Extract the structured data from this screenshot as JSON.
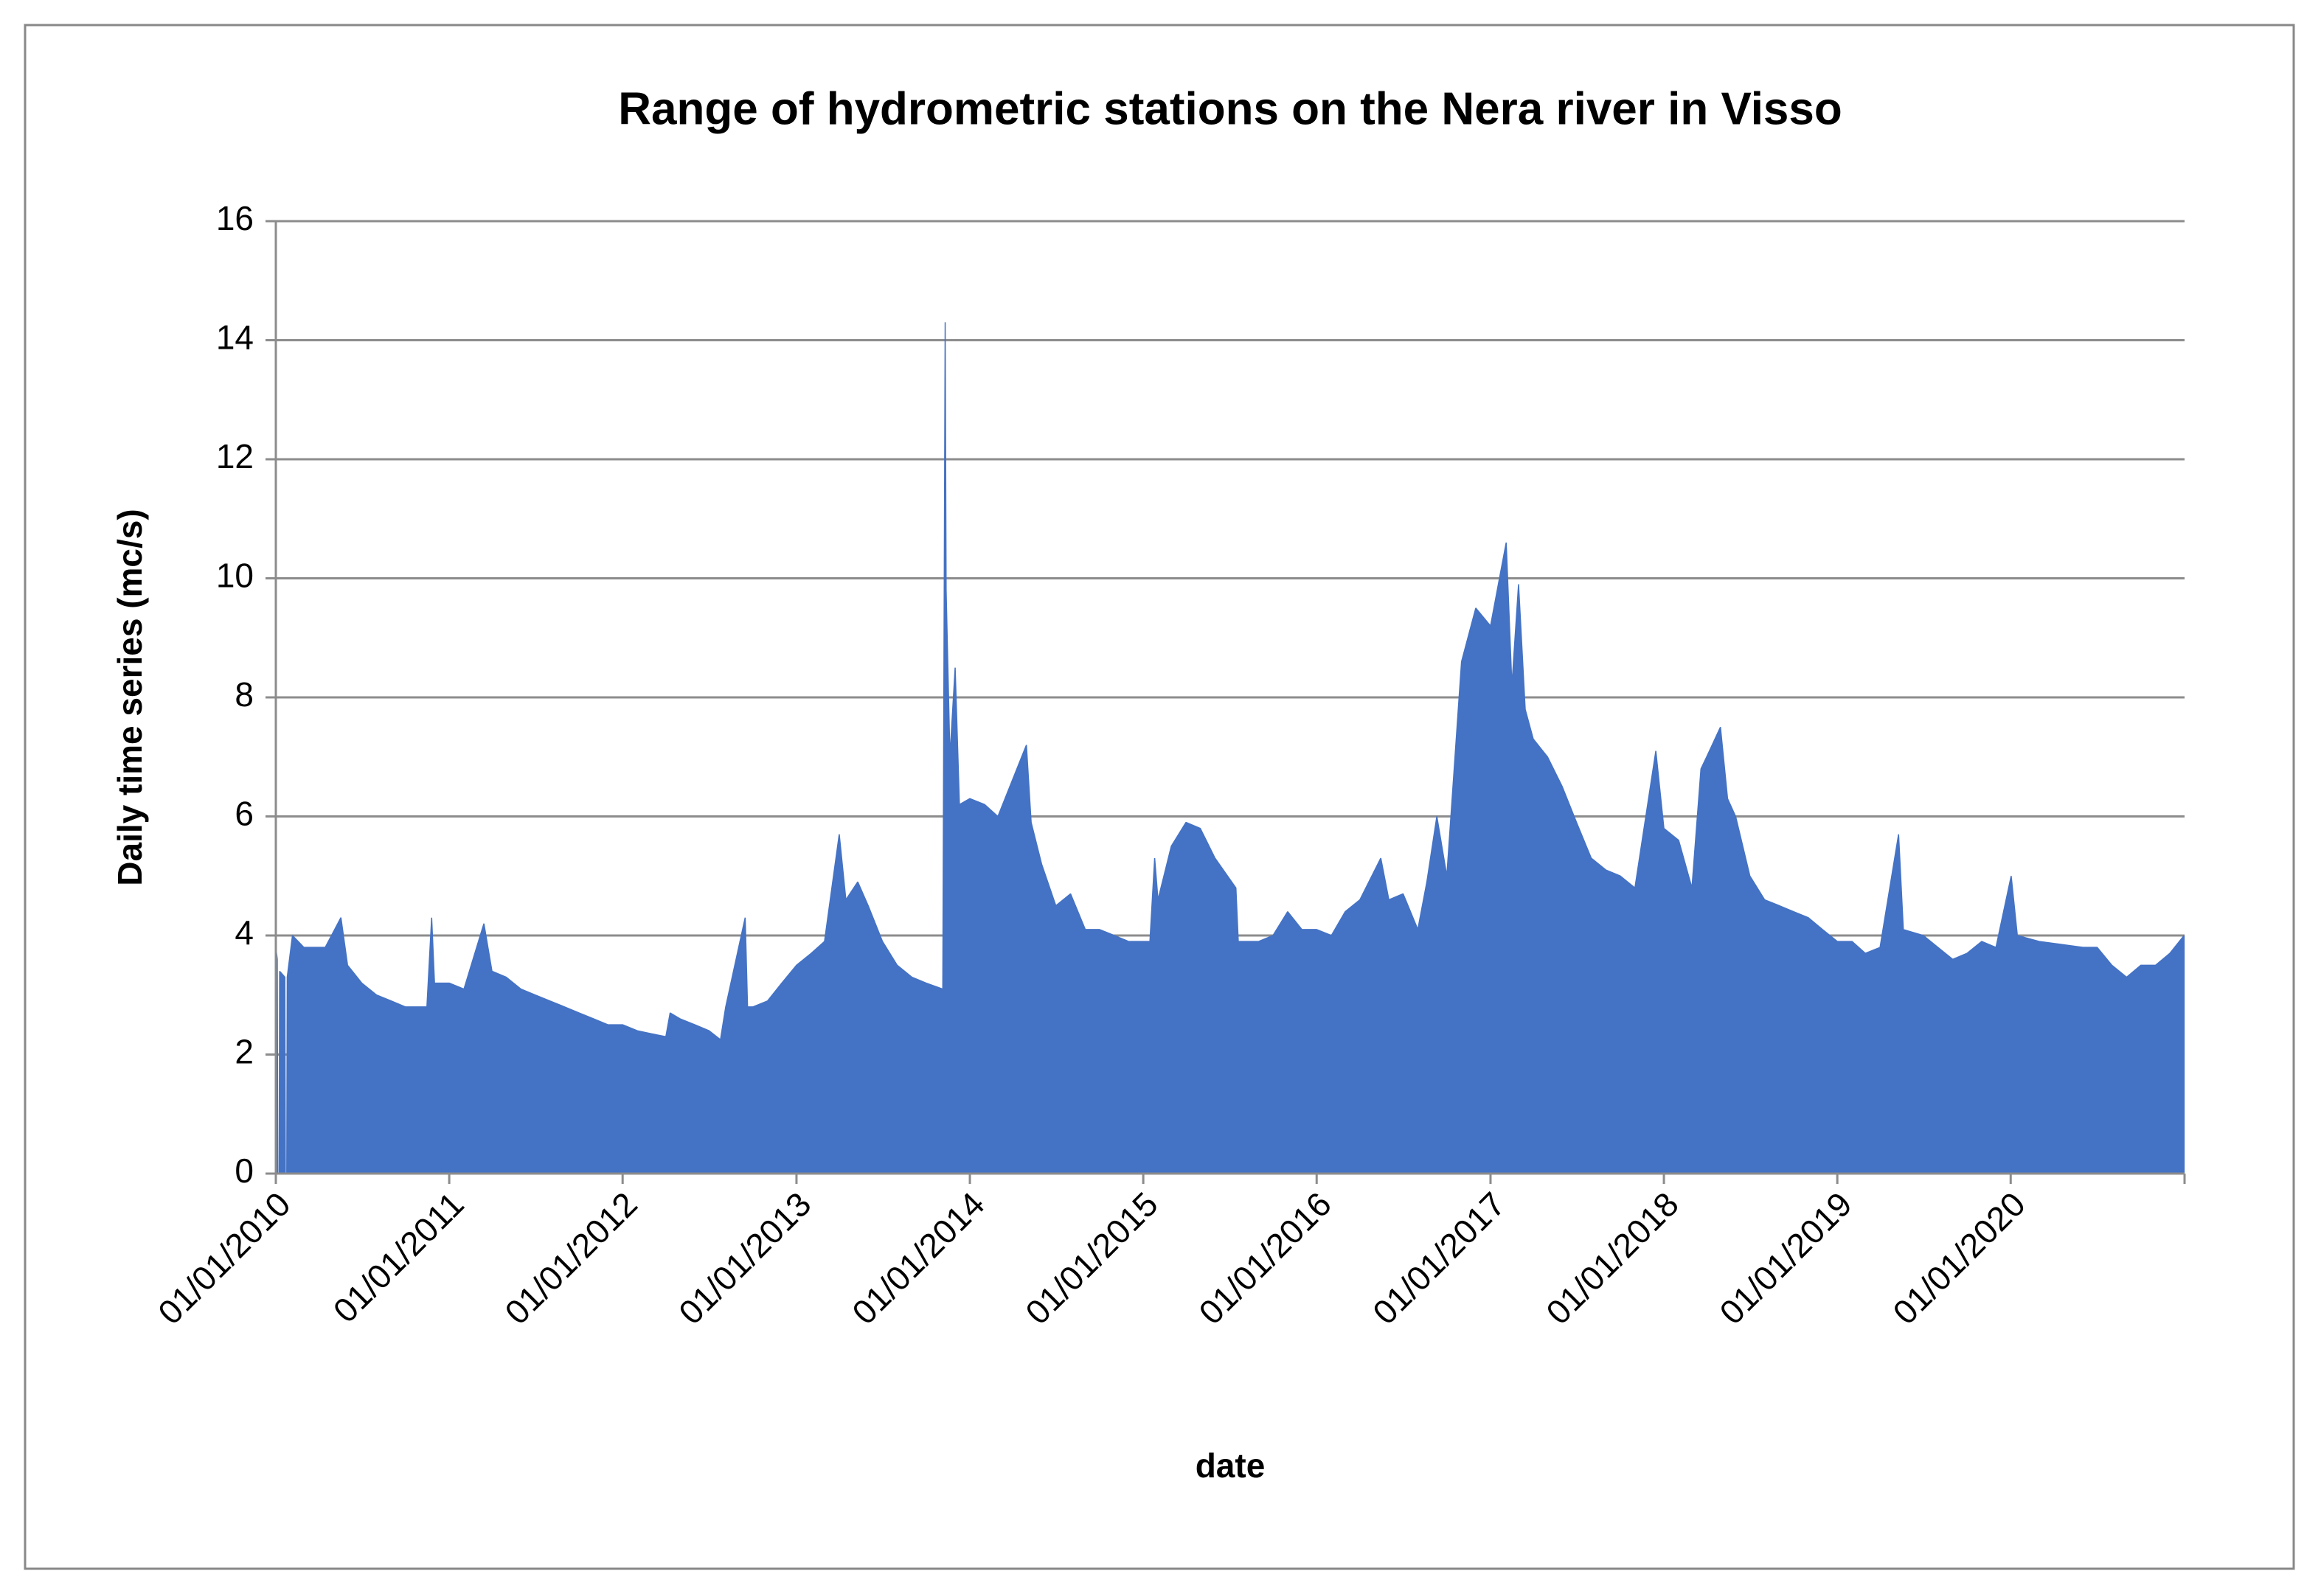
{
  "chart_data": {
    "type": "area",
    "title": "Range of hydrometric stations on the Nera river in Visso",
    "xlabel": "date",
    "ylabel": "Daily time series (mc/s)",
    "color": "#4472c4",
    "grid": true,
    "xlim": [
      "01/01/2010",
      "01/01/2021"
    ],
    "xticks": [
      "01/01/2010",
      "01/01/2011",
      "01/01/2012",
      "01/01/2013",
      "01/01/2014",
      "01/01/2015",
      "01/01/2016",
      "01/01/2017",
      "01/01/2018",
      "01/01/2019",
      "01/01/2020"
    ],
    "ylim": [
      0,
      16
    ],
    "yticks": [
      0,
      2,
      4,
      6,
      8,
      10,
      12,
      14,
      16
    ],
    "x": [
      "01/01/2010",
      "04/01/2010",
      "05/01/2010",
      "08/01/2010",
      "09/01/2010",
      "20/01/2010",
      "21/01/2010",
      "24/01/2010",
      "25/01/2010",
      "05/02/2010",
      "01/03/2010",
      "15/04/2010",
      "18/05/2010",
      "01/06/2010",
      "01/07/2010",
      "01/08/2010",
      "01/09/2010",
      "01/10/2010",
      "15/11/2010",
      "25/11/2010",
      "01/12/2010",
      "01/01/2011",
      "01/02/2011",
      "15/03/2011",
      "01/04/2011",
      "01/05/2011",
      "01/06/2011",
      "01/07/2011",
      "01/08/2011",
      "01/09/2011",
      "01/10/2011",
      "01/11/2011",
      "01/12/2011",
      "01/01/2012",
      "01/02/2012",
      "01/03/2012",
      "01/04/2012",
      "10/04/2012",
      "01/05/2012",
      "01/06/2012",
      "01/07/2012",
      "25/07/2012",
      "05/08/2012",
      "15/09/2012",
      "20/09/2012",
      "01/10/2012",
      "01/11/2012",
      "01/12/2012",
      "01/01/2013",
      "01/02/2013",
      "01/03/2013",
      "01/04/2013",
      "15/04/2013",
      "10/05/2013",
      "01/06/2013",
      "01/07/2013",
      "01/08/2013",
      "01/09/2013",
      "01/10/2013",
      "05/11/2013",
      "10/11/2013",
      "12/11/2013",
      "20/11/2013",
      "01/12/2013",
      "10/12/2013",
      "01/01/2014",
      "01/02/2014",
      "01/03/2014",
      "30/04/2014",
      "10/05/2014",
      "01/06/2014",
      "01/07/2014",
      "01/08/2014",
      "01/09/2014",
      "01/10/2014",
      "01/11/2014",
      "01/12/2014",
      "15/01/2015",
      "25/01/2015",
      "01/02/2015",
      "01/03/2015",
      "01/04/2015",
      "01/05/2015",
      "01/06/2015",
      "15/07/2015",
      "20/07/2015",
      "01/09/2015",
      "01/10/2015",
      "01/11/2015",
      "01/12/2015",
      "01/01/2016",
      "01/02/2016",
      "01/03/2016",
      "01/04/2016",
      "15/05/2016",
      "01/06/2016",
      "01/07/2016",
      "01/08/2016",
      "20/08/2016",
      "10/09/2016",
      "01/10/2016",
      "01/11/2016",
      "01/12/2016",
      "01/01/2017",
      "03/02/2017",
      "15/02/2017",
      "01/03/2017",
      "15/03/2017",
      "01/04/2017",
      "01/05/2017",
      "01/06/2017",
      "01/07/2017",
      "01/08/2017",
      "01/09/2017",
      "01/10/2017",
      "01/11/2017",
      "15/12/2017",
      "01/01/2018",
      "01/02/2018",
      "01/03/2018",
      "20/03/2018",
      "01/04/2018",
      "30/04/2018",
      "15/05/2018",
      "01/06/2018",
      "01/07/2018",
      "01/08/2018",
      "01/09/2018",
      "01/10/2018",
      "01/11/2018",
      "01/12/2018",
      "01/01/2019",
      "01/02/2019",
      "01/03/2019",
      "01/04/2019",
      "10/05/2019",
      "20/05/2019",
      "01/07/2019",
      "01/08/2019",
      "01/09/2019",
      "01/10/2019",
      "01/11/2019",
      "01/12/2019",
      "02/01/2020",
      "15/01/2020",
      "01/03/2020",
      "01/06/2020",
      "01/07/2020",
      "01/08/2020",
      "01/09/2020",
      "01/10/2020",
      "01/11/2020",
      "01/12/2020",
      "31/12/2020"
    ],
    "values": [
      3.8,
      3.6,
      0,
      0,
      3.4,
      3.3,
      0,
      0,
      3.3,
      4.0,
      3.8,
      3.8,
      4.3,
      3.5,
      3.2,
      3.0,
      2.9,
      2.8,
      2.8,
      4.3,
      3.2,
      3.2,
      3.1,
      4.2,
      3.4,
      3.3,
      3.1,
      3.0,
      2.9,
      2.8,
      2.7,
      2.6,
      2.5,
      2.5,
      2.4,
      2.35,
      2.3,
      2.7,
      2.6,
      2.5,
      2.4,
      2.25,
      2.8,
      4.3,
      2.8,
      2.8,
      2.9,
      3.2,
      3.5,
      3.7,
      3.9,
      5.7,
      4.6,
      4.9,
      4.5,
      3.9,
      3.5,
      3.3,
      3.2,
      3.1,
      14.3,
      9.8,
      7.0,
      8.5,
      6.2,
      6.3,
      6.2,
      6.0,
      7.2,
      5.9,
      5.2,
      4.5,
      4.7,
      4.1,
      4.1,
      4.0,
      3.9,
      3.9,
      5.3,
      4.6,
      5.5,
      5.9,
      5.8,
      5.3,
      4.8,
      3.9,
      3.9,
      4.0,
      4.4,
      4.1,
      4.1,
      4.0,
      4.4,
      4.6,
      5.3,
      4.6,
      4.7,
      4.1,
      4.9,
      6.0,
      5.0,
      8.6,
      9.5,
      9.2,
      10.6,
      8.2,
      9.9,
      7.8,
      7.3,
      7.0,
      6.5,
      5.9,
      5.3,
      5.1,
      5.0,
      4.8,
      7.1,
      5.8,
      5.6,
      4.8,
      6.8,
      7.0,
      7.5,
      6.3,
      6.0,
      5.0,
      4.6,
      4.5,
      4.4,
      4.3,
      4.1,
      3.9,
      3.9,
      3.7,
      3.8,
      5.7,
      4.1,
      4.0,
      3.8,
      3.6,
      3.7,
      3.9,
      3.8,
      5.0,
      4.0,
      3.9,
      3.8,
      3.8,
      3.5,
      3.3,
      3.5,
      3.5,
      3.7,
      4.0
    ]
  }
}
